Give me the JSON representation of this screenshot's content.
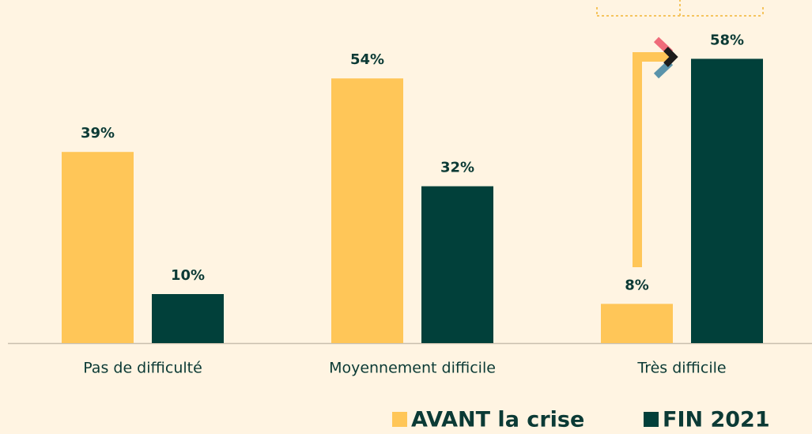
{
  "chart_data": {
    "type": "bar",
    "categories": [
      "Pas de difficulté",
      "Moyennement difficile",
      "Très difficile"
    ],
    "series": [
      {
        "name": "AVANT la crise",
        "color": "#ffc658",
        "values": [
          39,
          54,
          8
        ],
        "value_labels": [
          "39%",
          "54%",
          "8%"
        ]
      },
      {
        "name": "FIN 2021",
        "color": "#01403a",
        "values": [
          10,
          32,
          58
        ],
        "value_labels": [
          "10%",
          "32%",
          "58%"
        ]
      }
    ],
    "ylim": [
      0,
      70
    ]
  }
}
